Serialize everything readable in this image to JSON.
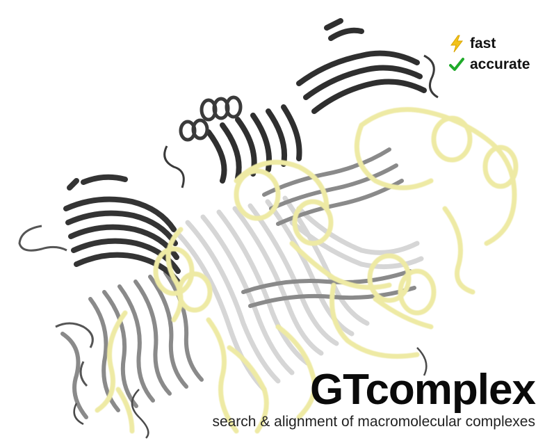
{
  "badges": [
    {
      "label": "fast",
      "icon": "lightning-bolt-icon",
      "color": "#f2c21b"
    },
    {
      "label": "accurate",
      "icon": "checkmark-icon",
      "color": "#1faa2a"
    }
  ],
  "brand": {
    "title": "GTcomplex",
    "subtitle": "search & alignment of macromolecular complexes"
  },
  "colors": {
    "protein_dark": "#2e2e2e",
    "protein_mid": "#6a6a6a",
    "protein_light": "#b8b8b8",
    "rna_ribbon": "#eeeaa4"
  }
}
